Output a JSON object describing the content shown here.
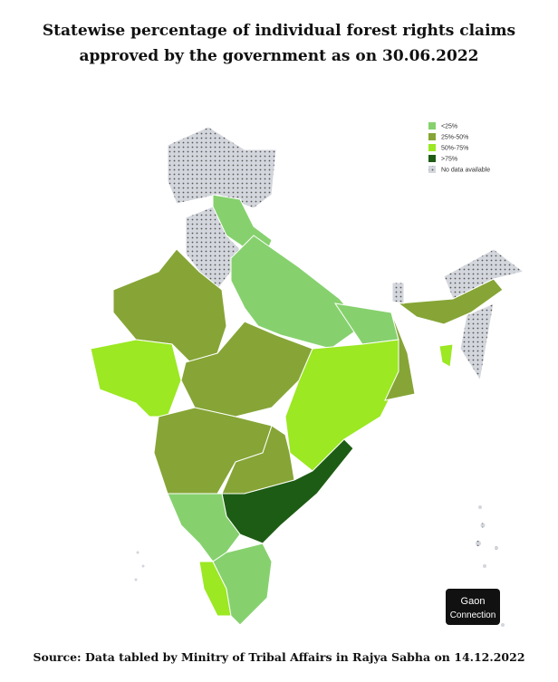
{
  "title": "Statewise percentage of individual forest rights claims approved by the government as on 30.06.2022",
  "legend": [
    {
      "label": "<25%",
      "color": "#86d16e"
    },
    {
      "label": "25%-50%",
      "color": "#86a536"
    },
    {
      "label": "50%-75%",
      "color": "#9be823"
    },
    {
      "label": ">75%",
      "color": "#1d5c14"
    },
    {
      "label": "No data available",
      "color": "#d3d6dc"
    }
  ],
  "logo": {
    "line1": "Gaon",
    "line2": "Connection"
  },
  "source": "Source: Data tabled by Minitry of Tribal Affairs in Rajya Sabha on 14.12.2022"
}
